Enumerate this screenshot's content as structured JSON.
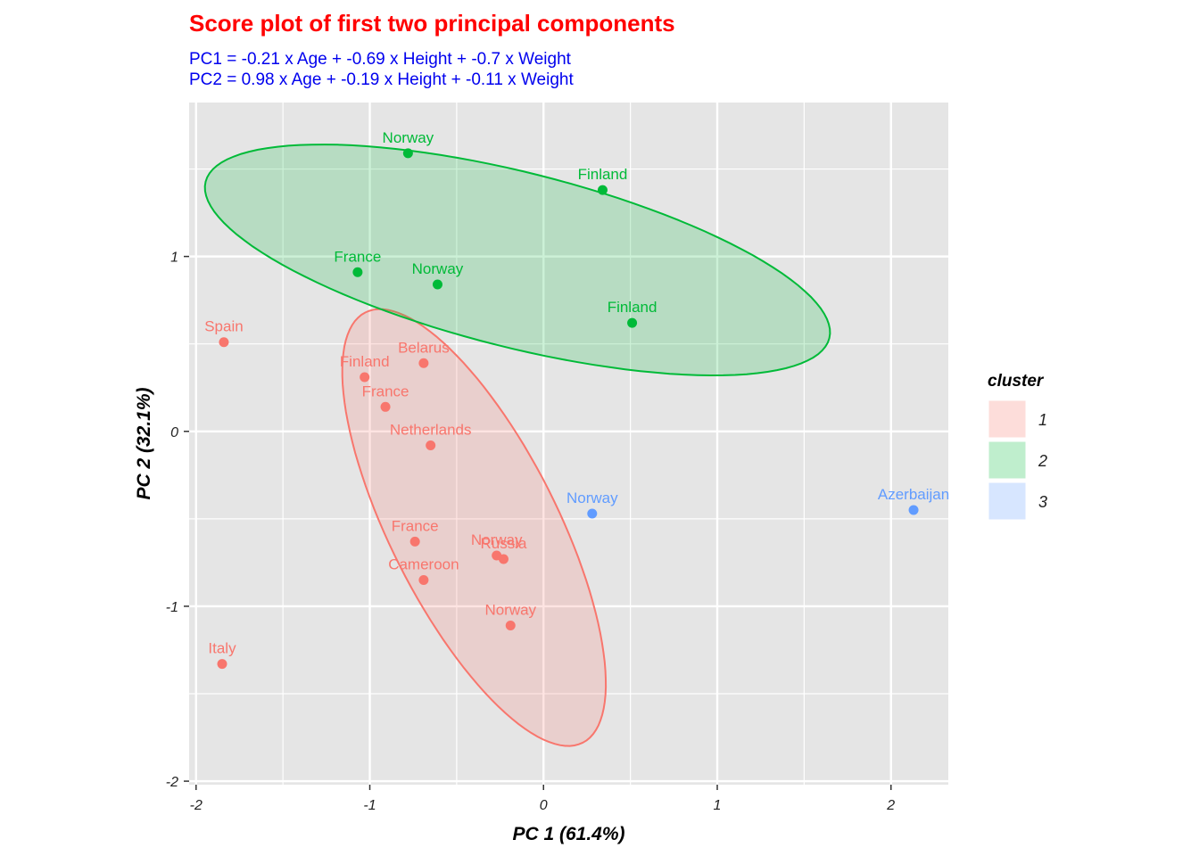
{
  "chart_data": {
    "type": "scatter",
    "title": "Score plot of first two principal components",
    "subtitle_lines": [
      "PC1 = -0.21 x Age + -0.69 x Height + -0.7 x Weight",
      "PC2 = 0.98 x Age + -0.19 x Height + -0.11 x Weight"
    ],
    "xlabel": "PC 1 (61.4%)",
    "ylabel": "PC 2 (32.1%)",
    "xlim": [
      -2.04,
      2.33
    ],
    "ylim": [
      -2.02,
      1.88
    ],
    "x_ticks": [
      -2,
      -1,
      0,
      1,
      2
    ],
    "y_ticks": [
      -2,
      -1,
      0,
      1
    ],
    "grid": true,
    "colors": {
      "title": "#ff0000",
      "subtitle": "#0000ee",
      "panel_bg": "#e5e5e5",
      "grid": "#ffffff",
      "clusters": {
        "1": "#f8766d",
        "2": "#00ba38",
        "3": "#619cff"
      }
    },
    "legend": {
      "title": "cluster",
      "position": "right",
      "entries": [
        {
          "cluster": "1",
          "label": "1"
        },
        {
          "cluster": "2",
          "label": "2"
        },
        {
          "cluster": "3",
          "label": "3"
        }
      ]
    },
    "points": [
      {
        "label": "Norway",
        "x": -0.78,
        "y": 1.59,
        "cluster": "2"
      },
      {
        "label": "Finland",
        "x": 0.34,
        "y": 1.38,
        "cluster": "2"
      },
      {
        "label": "France",
        "x": -1.07,
        "y": 0.91,
        "cluster": "2"
      },
      {
        "label": "Norway",
        "x": -0.61,
        "y": 0.84,
        "cluster": "2"
      },
      {
        "label": "Finland",
        "x": 0.51,
        "y": 0.62,
        "cluster": "2"
      },
      {
        "label": "Spain",
        "x": -1.84,
        "y": 0.51,
        "cluster": "1"
      },
      {
        "label": "Belarus",
        "x": -0.69,
        "y": 0.39,
        "cluster": "1"
      },
      {
        "label": "Finland",
        "x": -1.03,
        "y": 0.31,
        "cluster": "1"
      },
      {
        "label": "France",
        "x": -0.91,
        "y": 0.14,
        "cluster": "1"
      },
      {
        "label": "Netherlands",
        "x": -0.65,
        "y": -0.08,
        "cluster": "1"
      },
      {
        "label": "France",
        "x": -0.74,
        "y": -0.63,
        "cluster": "1"
      },
      {
        "label": "Norway",
        "x": -0.27,
        "y": -0.71,
        "cluster": "1"
      },
      {
        "label": "Russia",
        "x": -0.23,
        "y": -0.73,
        "cluster": "1"
      },
      {
        "label": "Cameroon",
        "x": -0.69,
        "y": -0.85,
        "cluster": "1"
      },
      {
        "label": "Norway",
        "x": -0.19,
        "y": -1.11,
        "cluster": "1"
      },
      {
        "label": "Italy",
        "x": -1.85,
        "y": -1.33,
        "cluster": "1"
      },
      {
        "label": "Norway",
        "x": 0.28,
        "y": -0.47,
        "cluster": "3"
      },
      {
        "label": "Azerbaijan",
        "x": 2.13,
        "y": -0.45,
        "cluster": "3"
      }
    ],
    "ellipses": [
      {
        "cluster": "1",
        "center": [
          -0.4,
          -0.55
        ],
        "semi_axes": [
          1.38,
          0.48
        ],
        "angle_deg": -63
      },
      {
        "cluster": "2",
        "center": [
          -0.15,
          0.98
        ],
        "semi_axes": [
          1.85,
          0.5
        ],
        "angle_deg": -14
      }
    ]
  }
}
